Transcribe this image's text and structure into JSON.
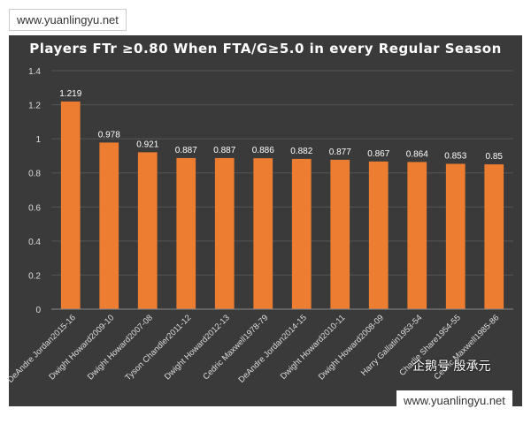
{
  "watermark_top": "www.yuanlingyu.net",
  "watermark_bottom": "www.yuanlingyu.net",
  "signature": "企鹅号 殷承元",
  "colors": {
    "background": "#3a3a3a",
    "bar": "#ed7d31",
    "text": "#ffffff",
    "gridline": "#555555"
  },
  "chart_data": {
    "type": "bar",
    "title": "Players FTr ≥0.80 When FTA/G≥5.0 in every Regular Season",
    "xlabel": "",
    "ylabel": "",
    "ylim": [
      0,
      1.4
    ],
    "yticks": [
      "0",
      "0.2",
      "0.4",
      "0.6",
      "0.8",
      "1",
      "1.2",
      "1.4"
    ],
    "categories": [
      "DeAndre Jordan2015-16",
      "Dwight Howard2009-10",
      "Dwight Howard2007-08",
      "Tyson Chandler2011-12",
      "Dwight Howard2012-13",
      "Cedric Maxwell1978-79",
      "DeAndre Jordan2014-15",
      "Dwight Howard2010-11",
      "Dwight Howard2008-09",
      "Harry Gallatin1953-54",
      "Charlie Share1954-55",
      "Cedric Maxwell1985-86"
    ],
    "values": [
      1.219,
      0.978,
      0.921,
      0.887,
      0.887,
      0.886,
      0.882,
      0.877,
      0.867,
      0.864,
      0.853,
      0.85
    ],
    "value_labels": [
      "1.219",
      "0.978",
      "0.921",
      "0.887",
      "0.887",
      "0.886",
      "0.882",
      "0.877",
      "0.867",
      "0.864",
      "0.853",
      "0.85"
    ]
  }
}
